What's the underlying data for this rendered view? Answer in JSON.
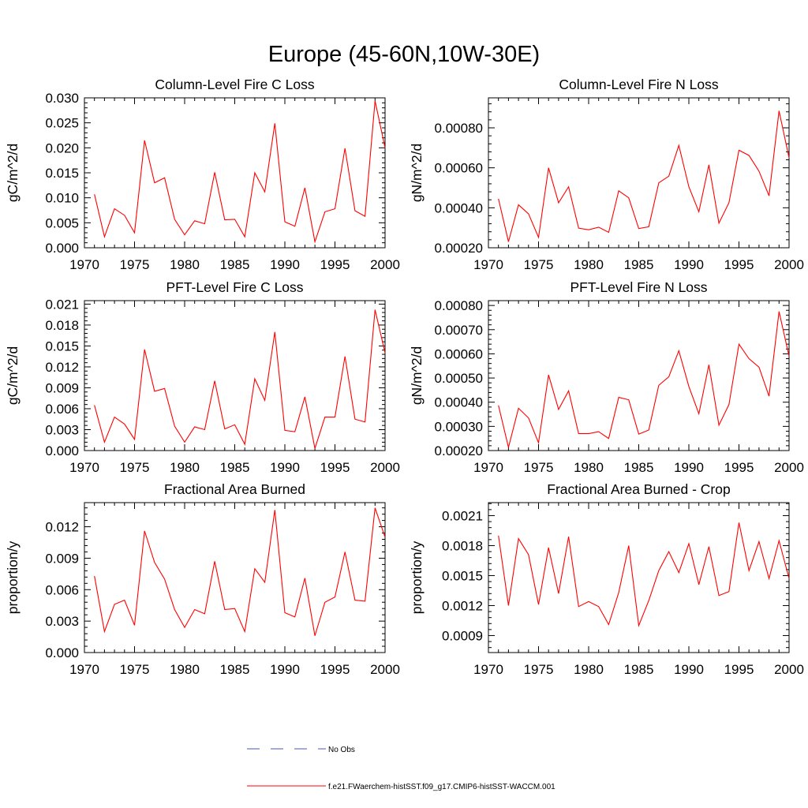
{
  "figure": {
    "title": "Europe (45-60N,10W-30E)"
  },
  "legend": {
    "entries": [
      {
        "label": "No Obs",
        "color": "#4a5aa8",
        "style": "dashed"
      },
      {
        "label": "f.e21.FWaerchem-histSST.f09_g17.CMIP6-histSST-WACCM.001",
        "color": "#ff0000",
        "style": "solid"
      }
    ]
  },
  "chart_data": [
    {
      "type": "line",
      "title": "Column-Level Fire C Loss",
      "xlabel": "",
      "ylabel": "gC/m^2/d",
      "xlim": [
        1970,
        2000
      ],
      "ylim": [
        0,
        0.03
      ],
      "xticks": [
        "1970",
        "1975",
        "1980",
        "1985",
        "1990",
        "1995",
        "2000"
      ],
      "yticks": [
        "0.000",
        "0.005",
        "0.010",
        "0.015",
        "0.020",
        "0.025",
        "0.030"
      ],
      "x": [
        1971,
        1972,
        1973,
        1974,
        1975,
        1976,
        1977,
        1978,
        1979,
        1980,
        1981,
        1982,
        1983,
        1984,
        1985,
        1986,
        1987,
        1988,
        1989,
        1990,
        1991,
        1992,
        1993,
        1994,
        1995,
        1996,
        1997,
        1998,
        1999,
        2000
      ],
      "series": [
        {
          "name": "f.e21.FWaerchem-histSST.f09_g17.CMIP6-histSST-WACCM.001",
          "color": "#ff0000",
          "values": [
            0.0107,
            0.0022,
            0.0078,
            0.0065,
            0.003,
            0.0215,
            0.013,
            0.014,
            0.0057,
            0.0026,
            0.0054,
            0.0048,
            0.0151,
            0.0056,
            0.0057,
            0.0022,
            0.015,
            0.0112,
            0.0249,
            0.0052,
            0.0043,
            0.012,
            0.0012,
            0.0072,
            0.0078,
            0.0199,
            0.0074,
            0.0063,
            0.0294,
            0.02
          ]
        }
      ]
    },
    {
      "type": "line",
      "title": "Column-Level Fire N Loss",
      "xlabel": "",
      "ylabel": "gN/m^2/d",
      "xlim": [
        1970,
        2000
      ],
      "ylim": [
        0.0002,
        0.00095
      ],
      "xticks": [
        "1970",
        "1975",
        "1980",
        "1985",
        "1990",
        "1995",
        "2000"
      ],
      "yticks": [
        "0.00020",
        "0.00040",
        "0.00060",
        "0.00080"
      ],
      "x": [
        1971,
        1972,
        1973,
        1974,
        1975,
        1976,
        1977,
        1978,
        1979,
        1980,
        1981,
        1982,
        1983,
        1984,
        1985,
        1986,
        1987,
        1988,
        1989,
        1990,
        1991,
        1992,
        1993,
        1994,
        1995,
        1996,
        1997,
        1998,
        1999,
        2000
      ],
      "series": [
        {
          "name": "f.e21.FWaerchem-histSST.f09_g17.CMIP6-histSST-WACCM.001",
          "color": "#ff0000",
          "values": [
            0.000445,
            0.00023,
            0.000415,
            0.00037,
            0.000252,
            0.0006,
            0.000425,
            0.000505,
            0.000298,
            0.00029,
            0.000303,
            0.000277,
            0.000485,
            0.00045,
            0.000296,
            0.000305,
            0.000525,
            0.000558,
            0.000712,
            0.000505,
            0.00038,
            0.000615,
            0.000323,
            0.000425,
            0.000688,
            0.000662,
            0.000583,
            0.00046,
            0.000885,
            0.00065
          ]
        }
      ]
    },
    {
      "type": "line",
      "title": "PFT-Level Fire C Loss",
      "xlabel": "",
      "ylabel": "gC/m^2/d",
      "xlim": [
        1970,
        2000
      ],
      "ylim": [
        0,
        0.0215
      ],
      "xticks": [
        "1970",
        "1975",
        "1980",
        "1985",
        "1990",
        "1995",
        "2000"
      ],
      "yticks": [
        "0.000",
        "0.003",
        "0.006",
        "0.009",
        "0.012",
        "0.015",
        "0.018",
        "0.021"
      ],
      "x": [
        1971,
        1972,
        1973,
        1974,
        1975,
        1976,
        1977,
        1978,
        1979,
        1980,
        1981,
        1982,
        1983,
        1984,
        1985,
        1986,
        1987,
        1988,
        1989,
        1990,
        1991,
        1992,
        1993,
        1994,
        1995,
        1996,
        1997,
        1998,
        1999,
        2000
      ],
      "series": [
        {
          "name": "f.e21.FWaerchem-histSST.f09_g17.CMIP6-histSST-WACCM.001",
          "color": "#ff0000",
          "values": [
            0.0065,
            0.0012,
            0.0048,
            0.0038,
            0.0016,
            0.0145,
            0.0085,
            0.0089,
            0.0035,
            0.0012,
            0.0034,
            0.003,
            0.01,
            0.0031,
            0.0037,
            0.0009,
            0.0103,
            0.0072,
            0.017,
            0.0029,
            0.0027,
            0.0077,
            0.0003,
            0.0048,
            0.0048,
            0.0135,
            0.0045,
            0.0041,
            0.0202,
            0.014
          ]
        }
      ]
    },
    {
      "type": "line",
      "title": "PFT-Level Fire N Loss",
      "xlabel": "",
      "ylabel": "gN/m^2/d",
      "xlim": [
        1970,
        2000
      ],
      "ylim": [
        0.0002,
        0.00082
      ],
      "xticks": [
        "1970",
        "1975",
        "1980",
        "1985",
        "1990",
        "1995",
        "2000"
      ],
      "yticks": [
        "0.00020",
        "0.00030",
        "0.00040",
        "0.00050",
        "0.00060",
        "0.00070",
        "0.00080"
      ],
      "x": [
        1971,
        1972,
        1973,
        1974,
        1975,
        1976,
        1977,
        1978,
        1979,
        1980,
        1981,
        1982,
        1983,
        1984,
        1985,
        1986,
        1987,
        1988,
        1989,
        1990,
        1991,
        1992,
        1993,
        1994,
        1995,
        1996,
        1997,
        1998,
        1999,
        2000
      ],
      "series": [
        {
          "name": "f.e21.FWaerchem-histSST.f09_g17.CMIP6-histSST-WACCM.001",
          "color": "#ff0000",
          "values": [
            0.000387,
            0.000213,
            0.000375,
            0.000335,
            0.000232,
            0.000513,
            0.00037,
            0.000447,
            0.00027,
            0.00027,
            0.000278,
            0.00025,
            0.00042,
            0.00041,
            0.000268,
            0.000285,
            0.00047,
            0.000505,
            0.000613,
            0.000465,
            0.000352,
            0.000555,
            0.000305,
            0.00039,
            0.00064,
            0.00058,
            0.000545,
            0.000425,
            0.000775,
            0.00059
          ]
        }
      ]
    },
    {
      "type": "line",
      "title": "Fractional Area Burned",
      "xlabel": "",
      "ylabel": "proportion/y",
      "xlim": [
        1970,
        2000
      ],
      "ylim": [
        0,
        0.0143
      ],
      "xticks": [
        "1970",
        "1975",
        "1980",
        "1985",
        "1990",
        "1995",
        "2000"
      ],
      "yticks": [
        "0.000",
        "0.003",
        "0.006",
        "0.009",
        "0.012"
      ],
      "x": [
        1971,
        1972,
        1973,
        1974,
        1975,
        1976,
        1977,
        1978,
        1979,
        1980,
        1981,
        1982,
        1983,
        1984,
        1985,
        1986,
        1987,
        1988,
        1989,
        1990,
        1991,
        1992,
        1993,
        1994,
        1995,
        1996,
        1997,
        1998,
        1999,
        2000
      ],
      "series": [
        {
          "name": "f.e21.FWaerchem-histSST.f09_g17.CMIP6-histSST-WACCM.001",
          "color": "#ff0000",
          "values": [
            0.0073,
            0.002,
            0.0046,
            0.005,
            0.0026,
            0.0116,
            0.0086,
            0.007,
            0.0041,
            0.0024,
            0.0041,
            0.0037,
            0.0087,
            0.0041,
            0.0042,
            0.002,
            0.008,
            0.0067,
            0.0136,
            0.0038,
            0.0034,
            0.0071,
            0.0016,
            0.0048,
            0.0053,
            0.0096,
            0.005,
            0.0049,
            0.0138,
            0.011
          ]
        }
      ]
    },
    {
      "type": "line",
      "title": "Fractional Area Burned - Crop",
      "xlabel": "",
      "ylabel": "proportion/y",
      "xlim": [
        1970,
        2000
      ],
      "ylim": [
        0.00073,
        0.00223
      ],
      "xticks": [
        "1970",
        "1975",
        "1980",
        "1985",
        "1990",
        "1995",
        "2000"
      ],
      "yticks": [
        "0.0009",
        "0.0012",
        "0.0015",
        "0.0018",
        "0.0021"
      ],
      "x": [
        1971,
        1972,
        1973,
        1974,
        1975,
        1976,
        1977,
        1978,
        1979,
        1980,
        1981,
        1982,
        1983,
        1984,
        1985,
        1986,
        1987,
        1988,
        1989,
        1990,
        1991,
        1992,
        1993,
        1994,
        1995,
        1996,
        1997,
        1998,
        1999,
        2000
      ],
      "series": [
        {
          "name": "f.e21.FWaerchem-histSST.f09_g17.CMIP6-histSST-WACCM.001",
          "color": "#ff0000",
          "values": [
            0.0019,
            0.0012,
            0.00187,
            0.00171,
            0.00121,
            0.00178,
            0.00132,
            0.00189,
            0.00119,
            0.00124,
            0.00119,
            0.00101,
            0.00133,
            0.0018,
            0.001,
            0.00125,
            0.00155,
            0.00174,
            0.00153,
            0.00182,
            0.00141,
            0.00179,
            0.0013,
            0.00134,
            0.00203,
            0.00155,
            0.00184,
            0.00147,
            0.00185,
            0.00147
          ]
        }
      ]
    }
  ]
}
